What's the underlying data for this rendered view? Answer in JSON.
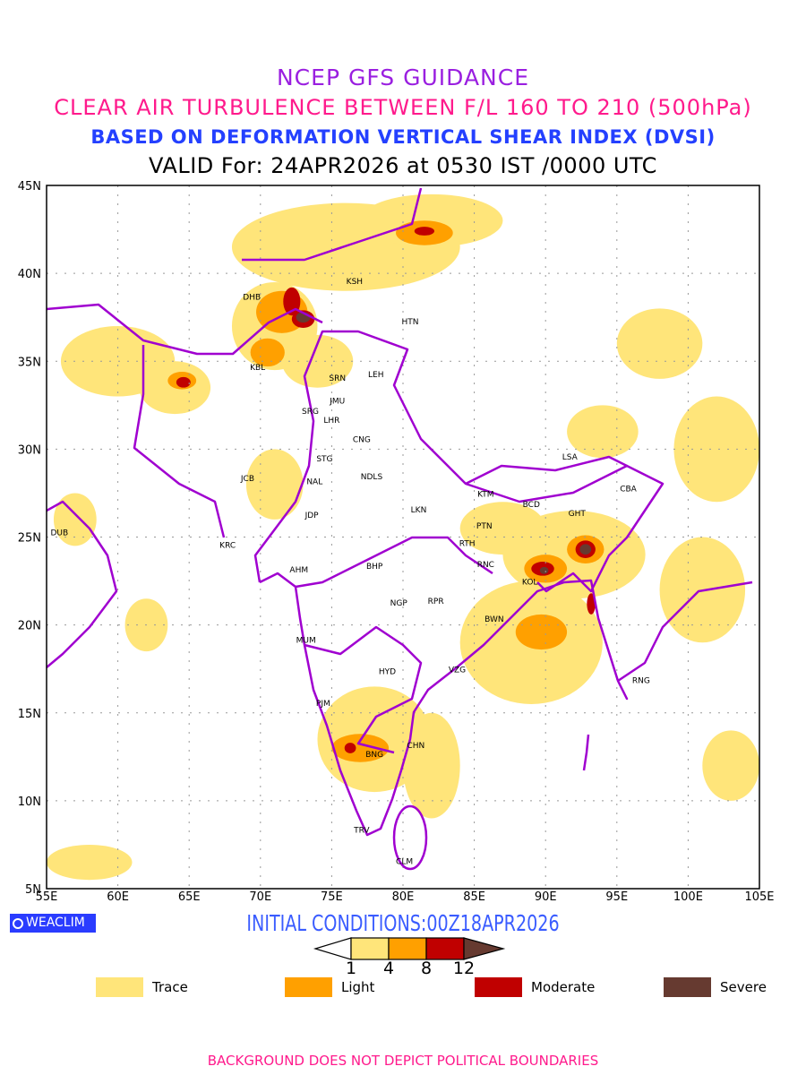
{
  "header": {
    "title": "NCEP GFS GUIDANCE",
    "subtitle": "CLEAR AIR TURBULENCE BETWEEN F/L 160 TO 210 (500hPa)",
    "method": "BASED ON DEFORMATION VERTICAL SHEAR INDEX (DVSI)",
    "valid": "VALID For: 24APR2026 at 0530 IST /0000 UTC"
  },
  "axes": {
    "lon_labels": [
      "55E",
      "60E",
      "65E",
      "70E",
      "75E",
      "80E",
      "85E",
      "90E",
      "95E",
      "100E",
      "105E"
    ],
    "lat_labels": [
      "45N",
      "40N",
      "35N",
      "30N",
      "25N",
      "20N",
      "15N",
      "10N",
      "5N"
    ],
    "lon_range": [
      55,
      105
    ],
    "lat_range": [
      5,
      45
    ]
  },
  "cities": [
    {
      "code": "DHB",
      "lon": 69.4,
      "lat": 38.7
    },
    {
      "code": "KSH",
      "lon": 76.6,
      "lat": 39.6
    },
    {
      "code": "HTN",
      "lon": 80.5,
      "lat": 37.3
    },
    {
      "code": "KBL",
      "lon": 69.8,
      "lat": 34.7
    },
    {
      "code": "SRN",
      "lon": 75.4,
      "lat": 34.1
    },
    {
      "code": "LEH",
      "lon": 78.1,
      "lat": 34.3
    },
    {
      "code": "JMU",
      "lon": 75.4,
      "lat": 32.8
    },
    {
      "code": "SRG",
      "lon": 73.5,
      "lat": 32.2
    },
    {
      "code": "LHR",
      "lon": 75.0,
      "lat": 31.7
    },
    {
      "code": "CNG",
      "lon": 77.1,
      "lat": 30.6
    },
    {
      "code": "STG",
      "lon": 74.5,
      "lat": 29.5
    },
    {
      "code": "NAL",
      "lon": 73.8,
      "lat": 28.2
    },
    {
      "code": "NDLS",
      "lon": 77.8,
      "lat": 28.5
    },
    {
      "code": "JCB",
      "lon": 69.1,
      "lat": 28.4
    },
    {
      "code": "JDP",
      "lon": 73.6,
      "lat": 26.3
    },
    {
      "code": "LKN",
      "lon": 81.1,
      "lat": 26.6
    },
    {
      "code": "LSA",
      "lon": 91.7,
      "lat": 29.6
    },
    {
      "code": "KTM",
      "lon": 85.8,
      "lat": 27.5
    },
    {
      "code": "BCD",
      "lon": 89.0,
      "lat": 26.9
    },
    {
      "code": "GHT",
      "lon": 92.2,
      "lat": 26.4
    },
    {
      "code": "CBA",
      "lon": 95.8,
      "lat": 27.8
    },
    {
      "code": "PTN",
      "lon": 85.7,
      "lat": 25.7
    },
    {
      "code": "RTH",
      "lon": 84.5,
      "lat": 24.7
    },
    {
      "code": "RNC",
      "lon": 85.8,
      "lat": 23.5
    },
    {
      "code": "KOL",
      "lon": 88.9,
      "lat": 22.5
    },
    {
      "code": "DUB",
      "lon": 55.9,
      "lat": 25.3
    },
    {
      "code": "KRC",
      "lon": 67.7,
      "lat": 24.6
    },
    {
      "code": "AHM",
      "lon": 72.7,
      "lat": 23.2
    },
    {
      "code": "BHP",
      "lon": 78.0,
      "lat": 23.4
    },
    {
      "code": "NGP",
      "lon": 79.7,
      "lat": 21.3
    },
    {
      "code": "RPR",
      "lon": 82.3,
      "lat": 21.4
    },
    {
      "code": "BWN",
      "lon": 86.4,
      "lat": 20.4
    },
    {
      "code": "MUM",
      "lon": 73.2,
      "lat": 19.2
    },
    {
      "code": "HYD",
      "lon": 78.9,
      "lat": 17.4
    },
    {
      "code": "VZG",
      "lon": 83.8,
      "lat": 17.5
    },
    {
      "code": "RNG",
      "lon": 96.7,
      "lat": 16.9
    },
    {
      "code": "PJM",
      "lon": 74.4,
      "lat": 15.6
    },
    {
      "code": "CHN",
      "lon": 80.9,
      "lat": 13.2
    },
    {
      "code": "BNG",
      "lon": 78.0,
      "lat": 12.7
    },
    {
      "code": "TRV",
      "lon": 77.1,
      "lat": 8.4
    },
    {
      "code": "CLM",
      "lon": 80.1,
      "lat": 6.6
    }
  ],
  "turbulence_areas": [
    {
      "lon": 76,
      "lat": 41.5,
      "dlon": 8,
      "dlat": 2.5,
      "level": "trace"
    },
    {
      "lon": 82,
      "lat": 43,
      "dlon": 5,
      "dlat": 1.5,
      "level": "trace"
    },
    {
      "lon": 71,
      "lat": 37,
      "dlon": 3,
      "dlat": 2.5,
      "level": "trace"
    },
    {
      "lon": 74,
      "lat": 35,
      "dlon": 2.5,
      "dlat": 1.5,
      "level": "trace"
    },
    {
      "lon": 89,
      "lat": 19,
      "dlon": 5,
      "dlat": 3.5,
      "level": "trace"
    },
    {
      "lon": 92,
      "lat": 24,
      "dlon": 5,
      "dlat": 2.5,
      "level": "trace"
    },
    {
      "lon": 87,
      "lat": 25.5,
      "dlon": 3,
      "dlat": 1.5,
      "level": "trace"
    },
    {
      "lon": 78,
      "lat": 13.5,
      "dlon": 4,
      "dlat": 3,
      "level": "trace"
    },
    {
      "lon": 82,
      "lat": 12,
      "dlon": 2,
      "dlat": 3,
      "level": "trace"
    },
    {
      "lon": 58,
      "lat": 6.5,
      "dlon": 3,
      "dlat": 1,
      "level": "trace"
    },
    {
      "lon": 60,
      "lat": 35,
      "dlon": 4,
      "dlat": 2,
      "level": "trace"
    },
    {
      "lon": 64,
      "lat": 33.5,
      "dlon": 2.5,
      "dlat": 1.5,
      "level": "trace"
    },
    {
      "lon": 102,
      "lat": 30,
      "dlon": 3,
      "dlat": 3,
      "level": "trace"
    },
    {
      "lon": 98,
      "lat": 36,
      "dlon": 3,
      "dlat": 2,
      "level": "trace"
    },
    {
      "lon": 101,
      "lat": 22,
      "dlon": 3,
      "dlat": 3,
      "level": "trace"
    },
    {
      "lon": 94,
      "lat": 31,
      "dlon": 2.5,
      "dlat": 1.5,
      "level": "trace"
    },
    {
      "lon": 57,
      "lat": 26,
      "dlon": 1.5,
      "dlat": 1.5,
      "level": "trace"
    },
    {
      "lon": 62,
      "lat": 20,
      "dlon": 1.5,
      "dlat": 1.5,
      "level": "trace"
    },
    {
      "lon": 71,
      "lat": 28,
      "dlon": 2,
      "dlat": 2,
      "level": "trace"
    },
    {
      "lon": 103,
      "lat": 12,
      "dlon": 2,
      "dlat": 2,
      "level": "trace"
    },
    {
      "lon": 71.5,
      "lat": 37.8,
      "dlon": 1.8,
      "dlat": 1.2,
      "level": "light"
    },
    {
      "lon": 70.5,
      "lat": 35.5,
      "dlon": 1.2,
      "dlat": 0.8,
      "level": "light"
    },
    {
      "lon": 81.5,
      "lat": 42.3,
      "dlon": 2,
      "dlat": 0.7,
      "level": "light"
    },
    {
      "lon": 89.7,
      "lat": 19.6,
      "dlon": 1.8,
      "dlat": 1,
      "level": "light"
    },
    {
      "lon": 90,
      "lat": 23.2,
      "dlon": 1.5,
      "dlat": 0.8,
      "level": "light"
    },
    {
      "lon": 92.8,
      "lat": 24.3,
      "dlon": 1.3,
      "dlat": 0.8,
      "level": "light"
    },
    {
      "lon": 77,
      "lat": 13,
      "dlon": 2,
      "dlat": 0.8,
      "level": "light"
    },
    {
      "lon": 64.5,
      "lat": 33.9,
      "dlon": 1,
      "dlat": 0.5,
      "level": "light"
    },
    {
      "lon": 72.2,
      "lat": 38.4,
      "dlon": 0.6,
      "dlat": 0.8,
      "level": "moderate"
    },
    {
      "lon": 73,
      "lat": 37.4,
      "dlon": 0.8,
      "dlat": 0.5,
      "level": "moderate"
    },
    {
      "lon": 89.8,
      "lat": 23.2,
      "dlon": 0.8,
      "dlat": 0.4,
      "level": "moderate"
    },
    {
      "lon": 92.8,
      "lat": 24.3,
      "dlon": 0.7,
      "dlat": 0.5,
      "level": "moderate"
    },
    {
      "lon": 93.2,
      "lat": 21.2,
      "dlon": 0.3,
      "dlat": 0.6,
      "level": "moderate"
    },
    {
      "lon": 76.3,
      "lat": 13,
      "dlon": 0.4,
      "dlat": 0.3,
      "level": "moderate"
    },
    {
      "lon": 81.5,
      "lat": 42.4,
      "dlon": 0.7,
      "dlat": 0.25,
      "level": "moderate"
    },
    {
      "lon": 64.6,
      "lat": 33.8,
      "dlon": 0.5,
      "dlat": 0.3,
      "level": "moderate"
    },
    {
      "lon": 73,
      "lat": 37.5,
      "dlon": 0.5,
      "dlat": 0.3,
      "level": "severe"
    },
    {
      "lon": 92.8,
      "lat": 24.3,
      "dlon": 0.4,
      "dlat": 0.3,
      "level": "severe"
    },
    {
      "lon": 89.9,
      "lat": 23.1,
      "dlon": 0.3,
      "dlat": 0.2,
      "level": "severe"
    }
  ],
  "colors": {
    "trace": "#ffe57a",
    "light": "#ffa000",
    "moderate": "#c00000",
    "severe": "#663a30",
    "boundary": "#a000d0"
  },
  "logo": "WEACLIM",
  "initial_conditions": "INITIAL CONDITIONS:00Z18APR2026",
  "colorbar": {
    "ticks": [
      "1",
      "4",
      "8",
      "12"
    ]
  },
  "legend": [
    {
      "label": "Trace",
      "color": "#ffe57a"
    },
    {
      "label": "Light",
      "color": "#ffa000"
    },
    {
      "label": "Moderate",
      "color": "#c00000"
    },
    {
      "label": "Severe",
      "color": "#663a30"
    }
  ],
  "footer": "BACKGROUND DOES NOT DEPICT POLITICAL BOUNDARIES"
}
